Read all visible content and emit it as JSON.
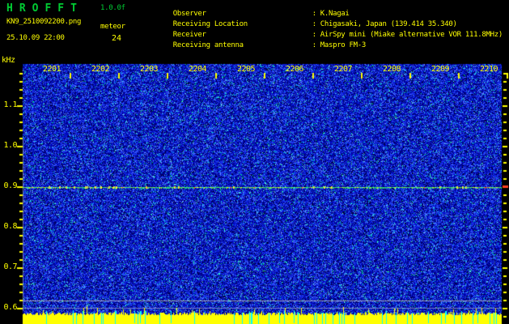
{
  "header": {
    "title": "HROFFT",
    "version": "1.0.0f",
    "filename": "KN9_2510092200.png",
    "datetime": "25.10.09 22:00",
    "counter": {
      "label": "meteor",
      "value": "24"
    },
    "info": [
      {
        "label": "Observer",
        "value": "K.Nagai"
      },
      {
        "label": "Receiving Location",
        "value": "Chigasaki, Japan (139.414 35.340)"
      },
      {
        "label": "Receiver",
        "value": "AirSpy mini (Miake alternative VOR 111.8MHz)"
      },
      {
        "label": "Receiving antenna",
        "value": "Maspro FM-3"
      }
    ]
  },
  "axes": {
    "freq_unit": "kHz",
    "freq_labels": [
      "1.1",
      "1.0",
      "0.9",
      "0.8",
      "0.7",
      "0.6"
    ],
    "time_labels": [
      "2201",
      "2202",
      "2203",
      "2204",
      "2205",
      "2206",
      "2207",
      "2208",
      "2209",
      "2210"
    ]
  },
  "spectrogram": {
    "carrier_line_khz": 0.9
  },
  "colors": {
    "background": "#000000",
    "accent_yellow": "#ffff00",
    "accent_green": "#00cc33",
    "noise_cyan": "#00c8dc",
    "carrier_green": "#30d878",
    "marker_red": "#ff4020",
    "dropout_cyan": "#00ffff",
    "grid_gray": "#9aa0b4",
    "grid_blue_gray": "#7880c8",
    "level_yellow": "#ffff00"
  }
}
